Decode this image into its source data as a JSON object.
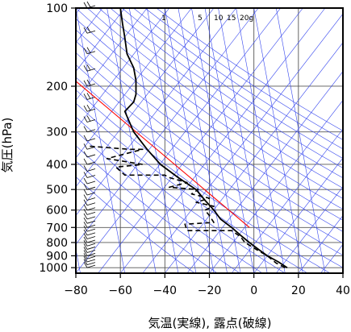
{
  "chart_data": {
    "type": "line",
    "title": "",
    "xlabel": "気温(実線), 露点(破線)",
    "ylabel": "気圧(hPa)",
    "xlim": [
      -80,
      40
    ],
    "ylim": [
      1050,
      100
    ],
    "y_scale": "log",
    "x_ticks": [
      -80,
      -60,
      -40,
      -20,
      0,
      20,
      40
    ],
    "x_tick_labels": [
      "−80",
      "−60",
      "−40",
      "−20",
      "0",
      "20",
      "40"
    ],
    "y_ticks": [
      100,
      200,
      300,
      400,
      500,
      600,
      700,
      800,
      900,
      1000
    ],
    "y_tick_labels": [
      "100",
      "200",
      "300",
      "400",
      "500",
      "600",
      "700",
      "800",
      "900",
      "1000"
    ],
    "mixing_ratio_labels": [
      "1",
      "5",
      "10",
      "15",
      "20g"
    ],
    "grid": true,
    "series": [
      {
        "style": "solid",
        "color": "#000000",
        "points": [
          [
            15,
            1000
          ],
          [
            11,
            950
          ],
          [
            6,
            900
          ],
          [
            2,
            850
          ],
          [
            -2,
            800
          ],
          [
            -6,
            750
          ],
          [
            -10,
            700
          ],
          [
            -15,
            650
          ],
          [
            -18,
            600
          ],
          [
            -22,
            550
          ],
          [
            -26,
            500
          ],
          [
            -34,
            450
          ],
          [
            -42,
            400
          ],
          [
            -48,
            350
          ],
          [
            -54,
            300
          ],
          [
            -58,
            250
          ],
          [
            -54,
            230
          ],
          [
            -53,
            215
          ],
          [
            -53,
            190
          ],
          [
            -54,
            170
          ],
          [
            -57,
            150
          ],
          [
            -58,
            130
          ],
          [
            -59,
            115
          ],
          [
            -60,
            100
          ]
        ]
      },
      {
        "style": "dashed",
        "color": "#000000",
        "points": [
          [
            14,
            1000
          ],
          [
            10,
            960
          ],
          [
            6,
            900
          ],
          [
            1,
            850
          ],
          [
            -4,
            800
          ],
          [
            -6,
            760
          ],
          [
            -10,
            720
          ],
          [
            -30,
            720
          ],
          [
            -31,
            680
          ],
          [
            -18,
            670
          ],
          [
            -20,
            630
          ],
          [
            -22,
            600
          ],
          [
            -18,
            580
          ],
          [
            -26,
            560
          ],
          [
            -20,
            540
          ],
          [
            -28,
            520
          ],
          [
            -25,
            500
          ],
          [
            -38,
            490
          ],
          [
            -30,
            470
          ],
          [
            -38,
            450
          ],
          [
            -40,
            440
          ],
          [
            -45,
            440
          ],
          [
            -58,
            440
          ],
          [
            -62,
            410
          ],
          [
            -50,
            400
          ],
          [
            -66,
            380
          ],
          [
            -50,
            350
          ],
          [
            -56,
            350
          ],
          [
            -75,
            340
          ]
        ]
      }
    ],
    "reference_line": {
      "color": "#ff0000",
      "points": [
        [
          -82,
          185
        ],
        [
          -2,
          700
        ]
      ]
    }
  }
}
